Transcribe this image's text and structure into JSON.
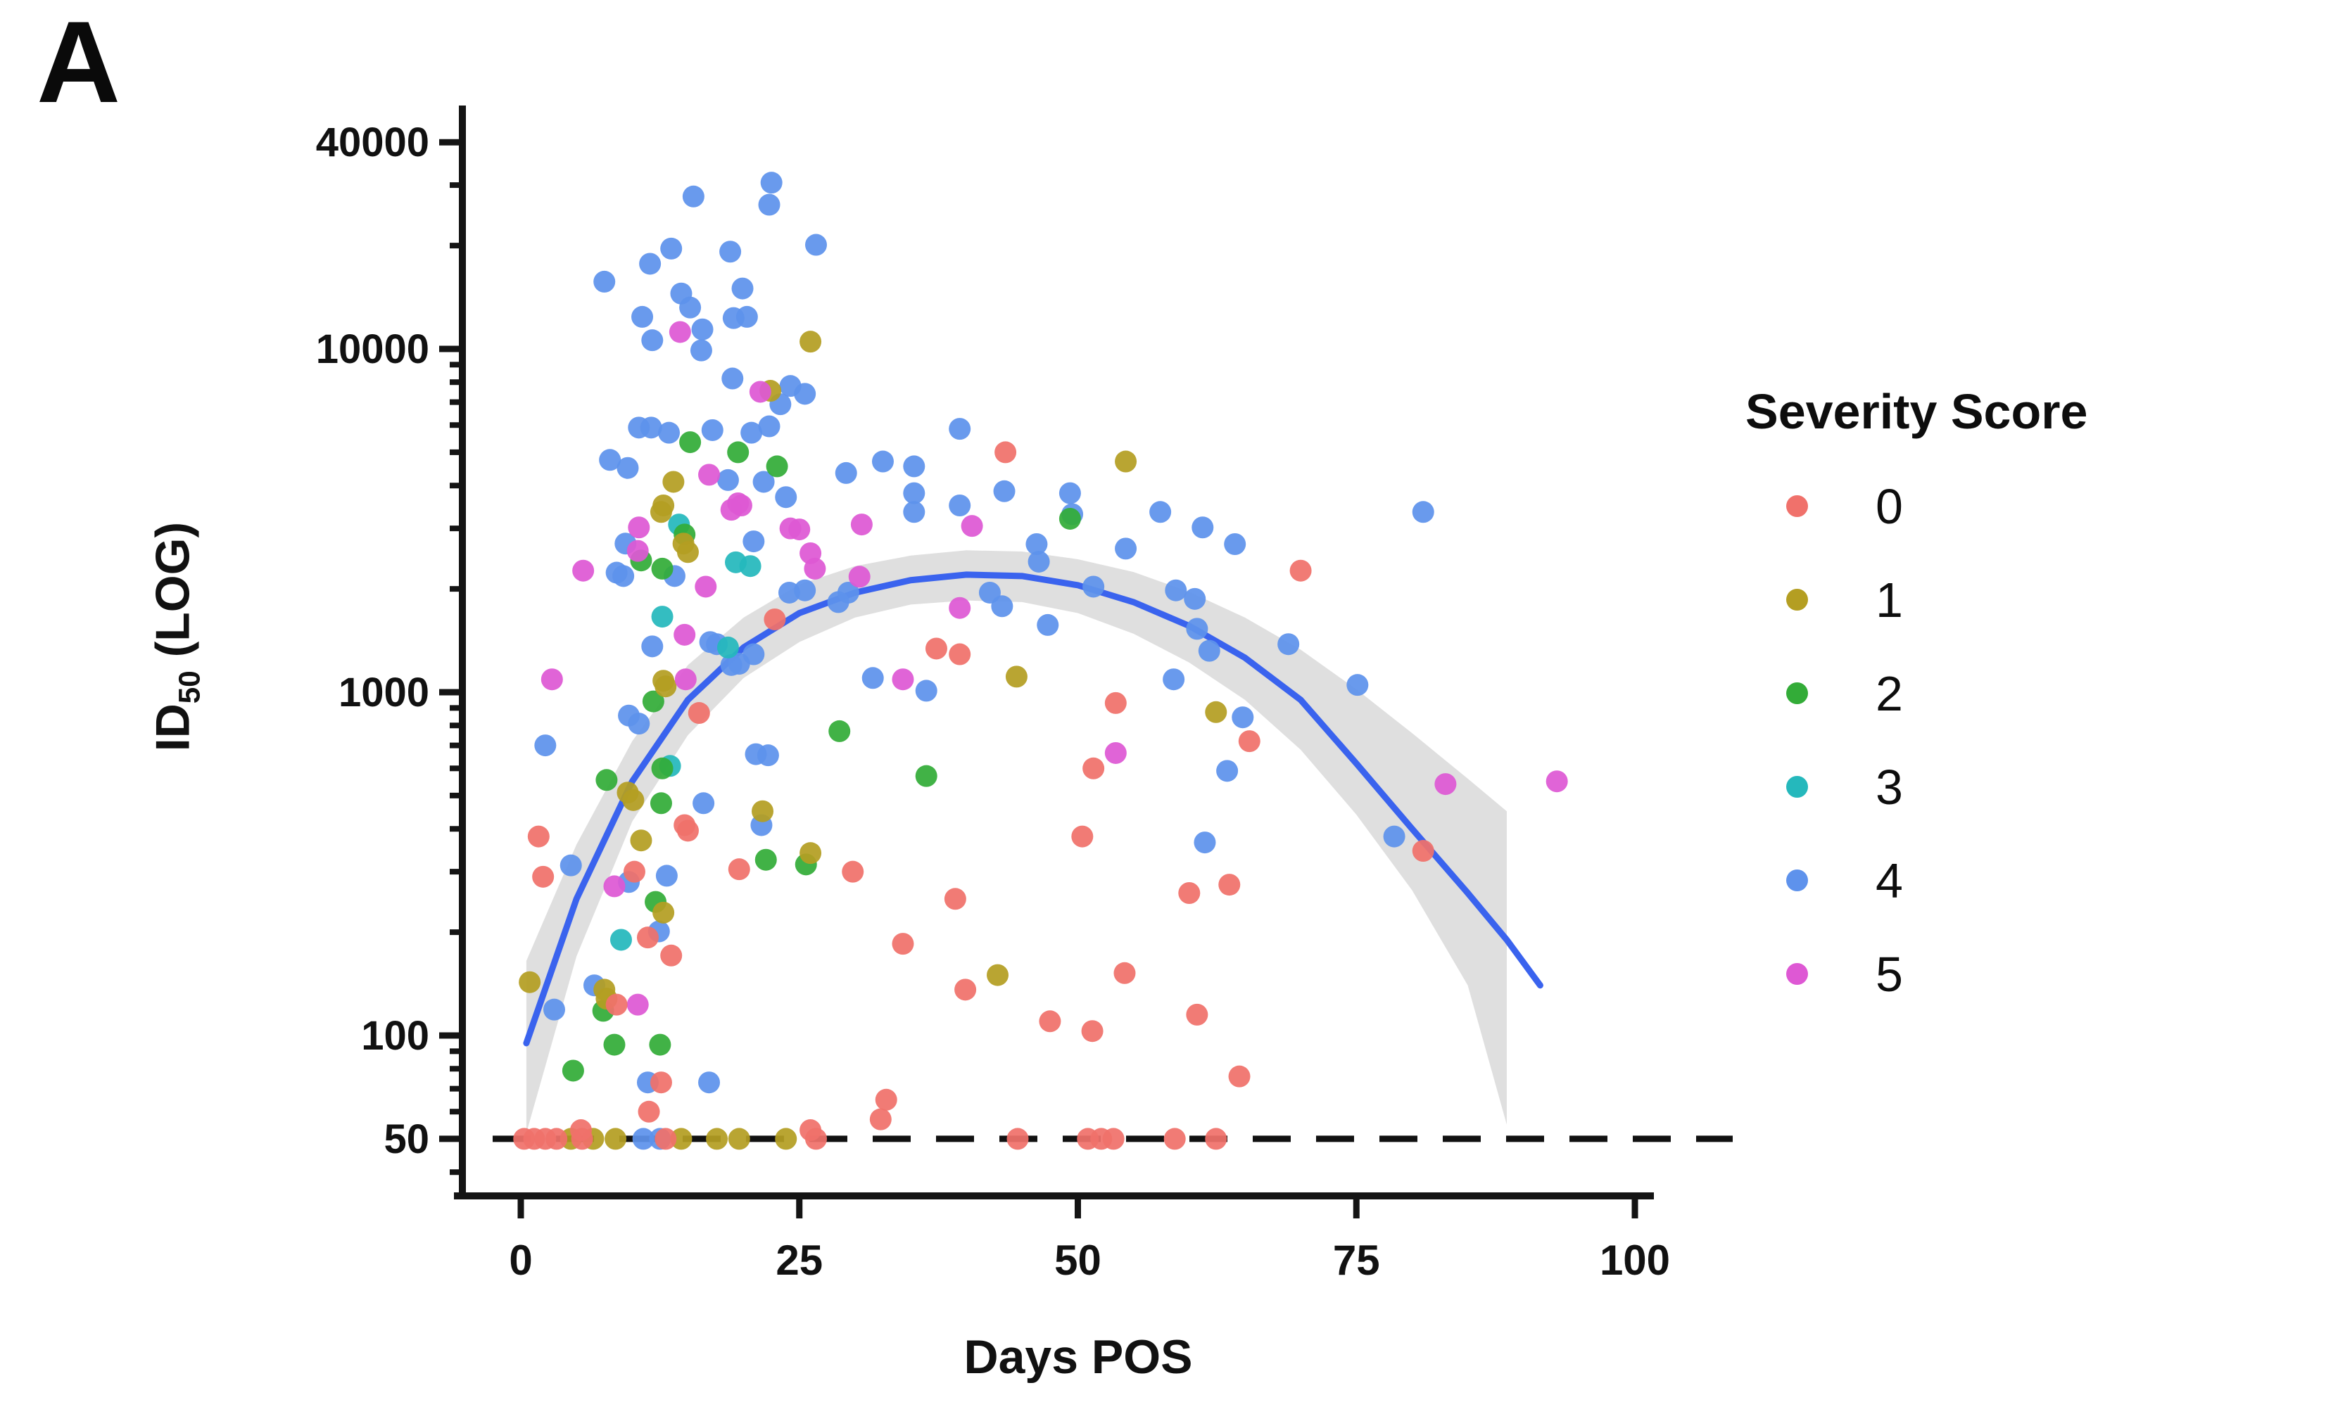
{
  "figure": {
    "panel_label": "A",
    "background": "#ffffff"
  },
  "chart_data": {
    "type": "scatter",
    "title": "",
    "xlabel": "Days POS",
    "ylabel": {
      "main": "ID",
      "sub": "50",
      "rest": " (LOG)"
    },
    "x_domain": [
      0,
      100
    ],
    "x_ticks": [
      0,
      25,
      50,
      75,
      100
    ],
    "y_scale": "log",
    "y_ticks": [
      40000,
      10000,
      1000,
      100,
      50
    ],
    "y_minor_ticks": [
      30000,
      20000,
      9000,
      8000,
      7000,
      6000,
      5000,
      4000,
      3000,
      2000,
      900,
      800,
      700,
      600,
      500,
      400,
      300,
      200,
      90,
      80,
      70,
      60,
      40
    ],
    "grid": "off",
    "legend_position": "right",
    "threshold": {
      "value": 50,
      "style": "dashed",
      "color": "#111111"
    },
    "legend": {
      "title": "Severity Score",
      "entries": [
        {
          "label": "0",
          "color": "#F0716B"
        },
        {
          "label": "1",
          "color": "#B49E22"
        },
        {
          "label": "2",
          "color": "#33AC38"
        },
        {
          "label": "3",
          "color": "#25B8BC"
        },
        {
          "label": "4",
          "color": "#5E92EC"
        },
        {
          "label": "5",
          "color": "#DE58D4"
        }
      ]
    },
    "smooth": {
      "color": "#3A63EE",
      "points": [
        [
          0.5,
          95
        ],
        [
          5,
          250
        ],
        [
          10,
          550
        ],
        [
          15,
          950
        ],
        [
          20,
          1350
        ],
        [
          25,
          1700
        ],
        [
          30,
          1950
        ],
        [
          35,
          2120
        ],
        [
          40,
          2200
        ],
        [
          45,
          2180
        ],
        [
          50,
          2050
        ],
        [
          55,
          1830
        ],
        [
          60,
          1560
        ],
        [
          65,
          1260
        ],
        [
          70,
          950
        ],
        [
          75,
          620
        ],
        [
          80,
          400
        ],
        [
          85,
          260
        ],
        [
          88.5,
          190
        ],
        [
          91.5,
          140
        ]
      ]
    },
    "band": {
      "color": "#9c9c9c",
      "opacity": 0.32,
      "days": [
        0.5,
        5,
        10,
        15,
        20,
        25,
        30,
        35,
        40,
        45,
        50,
        55,
        60,
        65,
        70,
        75,
        80,
        85,
        88.5
      ],
      "lower": [
        52,
        170,
        420,
        750,
        1100,
        1400,
        1650,
        1800,
        1850,
        1830,
        1700,
        1480,
        1220,
        950,
        680,
        440,
        265,
        140,
        55
      ],
      "upper": [
        165,
        360,
        720,
        1200,
        1650,
        2060,
        2330,
        2500,
        2590,
        2570,
        2440,
        2240,
        1960,
        1650,
        1330,
        1020,
        760,
        560,
        450
      ]
    },
    "points": [
      [
        15.5,
        27800,
        4
      ],
      [
        22.5,
        30500,
        4
      ],
      [
        22.3,
        26300,
        4
      ],
      [
        26.5,
        20100,
        4
      ],
      [
        13.5,
        19600,
        4
      ],
      [
        18.8,
        19200,
        4
      ],
      [
        11.6,
        17700,
        4
      ],
      [
        7.5,
        15700,
        4
      ],
      [
        19.9,
        15000,
        4
      ],
      [
        14.4,
        14500,
        4
      ],
      [
        15.2,
        13200,
        4
      ],
      [
        10.9,
        12400,
        4
      ],
      [
        20.3,
        12400,
        4
      ],
      [
        19.1,
        12300,
        4
      ],
      [
        16.3,
        11400,
        4
      ],
      [
        11.8,
        10600,
        4
      ],
      [
        16.2,
        9900,
        4
      ],
      [
        19,
        8200,
        4
      ],
      [
        24.2,
        7800,
        4
      ],
      [
        25.5,
        7400,
        4
      ],
      [
        23.3,
        6900,
        4
      ],
      [
        10.6,
        5900,
        4
      ],
      [
        11.7,
        5900,
        4
      ],
      [
        17.2,
        5800,
        4
      ],
      [
        13.3,
        5700,
        4
      ],
      [
        20.7,
        5700,
        4
      ],
      [
        22.3,
        5950,
        4
      ],
      [
        39.4,
        5850,
        4
      ],
      [
        8,
        4750,
        4
      ],
      [
        32.5,
        4700,
        4
      ],
      [
        9.6,
        4500,
        4
      ],
      [
        35.3,
        4550,
        4
      ],
      [
        29.2,
        4350,
        4
      ],
      [
        18.6,
        4150,
        4
      ],
      [
        21.8,
        4100,
        4
      ],
      [
        43.4,
        3850,
        4
      ],
      [
        49.3,
        3800,
        4
      ],
      [
        35.3,
        3800,
        4
      ],
      [
        23.8,
        3700,
        4
      ],
      [
        39.4,
        3500,
        4
      ],
      [
        35.3,
        3350,
        4
      ],
      [
        57.4,
        3350,
        4
      ],
      [
        81,
        3350,
        4
      ],
      [
        49.5,
        3300,
        4
      ],
      [
        61.2,
        3020,
        4
      ],
      [
        54.3,
        2620,
        4
      ],
      [
        46.3,
        2700,
        4
      ],
      [
        64.1,
        2700,
        4
      ],
      [
        20.9,
        2750,
        4
      ],
      [
        9.4,
        2710,
        4
      ],
      [
        46.5,
        2400,
        4
      ],
      [
        8.6,
        2230,
        4
      ],
      [
        9.2,
        2180,
        4
      ],
      [
        13.8,
        2180,
        4
      ],
      [
        51.4,
        2030,
        4
      ],
      [
        42.1,
        1950,
        4
      ],
      [
        24.1,
        1950,
        4
      ],
      [
        25.5,
        1980,
        4
      ],
      [
        58.8,
        1980,
        4
      ],
      [
        60.5,
        1870,
        4
      ],
      [
        28.5,
        1830,
        4
      ],
      [
        29.4,
        1950,
        4
      ],
      [
        43.2,
        1780,
        4
      ],
      [
        47.3,
        1570,
        4
      ],
      [
        60.7,
        1530,
        4
      ],
      [
        68.9,
        1380,
        4
      ],
      [
        17.6,
        1380,
        4
      ],
      [
        17,
        1400,
        4
      ],
      [
        11.8,
        1360,
        4
      ],
      [
        61.8,
        1320,
        4
      ],
      [
        20.9,
        1290,
        4
      ],
      [
        18.9,
        1200,
        4
      ],
      [
        19.6,
        1210,
        4
      ],
      [
        31.6,
        1100,
        4
      ],
      [
        58.6,
        1090,
        4
      ],
      [
        75.1,
        1050,
        4
      ],
      [
        36.4,
        1010,
        4
      ],
      [
        64.8,
        845,
        4
      ],
      [
        9.7,
        855,
        4
      ],
      [
        10.6,
        810,
        4
      ],
      [
        2.2,
        700,
        4
      ],
      [
        21.1,
        660,
        4
      ],
      [
        22.2,
        655,
        4
      ],
      [
        63.4,
        590,
        4
      ],
      [
        16.4,
        475,
        4
      ],
      [
        21.6,
        410,
        4
      ],
      [
        78.4,
        380,
        4
      ],
      [
        61.4,
        365,
        4
      ],
      [
        4.5,
        313,
        4
      ],
      [
        13.1,
        292,
        4
      ],
      [
        9.7,
        280,
        4
      ],
      [
        12.4,
        201,
        4
      ],
      [
        6.6,
        140,
        4
      ],
      [
        3,
        119,
        4
      ],
      [
        11.4,
        73,
        4
      ],
      [
        16.9,
        73,
        4
      ],
      [
        11,
        50,
        4
      ],
      [
        12.5,
        50,
        4
      ],
      [
        14.2,
        3080,
        3
      ],
      [
        19.3,
        2390,
        3
      ],
      [
        20.6,
        2330,
        3
      ],
      [
        12.7,
        1660,
        3
      ],
      [
        18.6,
        1350,
        3
      ],
      [
        13.4,
        610,
        3
      ],
      [
        9,
        190,
        3
      ],
      [
        15.2,
        5350,
        2
      ],
      [
        19.5,
        5000,
        2
      ],
      [
        23,
        4550,
        2
      ],
      [
        49.3,
        3200,
        2
      ],
      [
        14.7,
        2880,
        2
      ],
      [
        10.8,
        2420,
        2
      ],
      [
        12.7,
        2290,
        2
      ],
      [
        11.9,
        940,
        2
      ],
      [
        28.6,
        770,
        2
      ],
      [
        36.4,
        570,
        2
      ],
      [
        7.7,
        555,
        2
      ],
      [
        12.7,
        600,
        2
      ],
      [
        12.6,
        475,
        2
      ],
      [
        22,
        325,
        2
      ],
      [
        25.6,
        315,
        2
      ],
      [
        12.1,
        245,
        2
      ],
      [
        7.4,
        118,
        2
      ],
      [
        8.4,
        94,
        2
      ],
      [
        12.5,
        94,
        2
      ],
      [
        4.7,
        79,
        2
      ],
      [
        26,
        10500,
        1
      ],
      [
        22.4,
        7550,
        1
      ],
      [
        13.7,
        4100,
        1
      ],
      [
        12.8,
        3500,
        1
      ],
      [
        12.6,
        3350,
        1
      ],
      [
        14.6,
        2710,
        1
      ],
      [
        15,
        2560,
        1
      ],
      [
        54.3,
        4700,
        1
      ],
      [
        44.5,
        1110,
        1
      ],
      [
        62.4,
        875,
        1
      ],
      [
        12.8,
        1080,
        1
      ],
      [
        13,
        1040,
        1
      ],
      [
        9.6,
        510,
        1
      ],
      [
        10.1,
        485,
        1
      ],
      [
        21.7,
        450,
        1
      ],
      [
        26,
        340,
        1
      ],
      [
        10.8,
        370,
        1
      ],
      [
        42.8,
        150,
        1
      ],
      [
        0.8,
        143,
        1
      ],
      [
        7.5,
        136,
        1
      ],
      [
        7.7,
        128,
        1
      ],
      [
        12.8,
        228,
        1
      ],
      [
        4.5,
        50,
        1
      ],
      [
        6.5,
        50,
        1
      ],
      [
        8.5,
        50,
        1
      ],
      [
        14.4,
        50,
        1
      ],
      [
        17.6,
        50,
        1
      ],
      [
        19.6,
        50,
        1
      ],
      [
        23.8,
        50,
        1
      ],
      [
        14.3,
        11200,
        5
      ],
      [
        21.5,
        7500,
        5
      ],
      [
        16.9,
        4300,
        5
      ],
      [
        19.8,
        3500,
        5
      ],
      [
        19.5,
        3550,
        5
      ],
      [
        18.9,
        3400,
        5
      ],
      [
        24.2,
        3000,
        5
      ],
      [
        25,
        2980,
        5
      ],
      [
        30.6,
        3080,
        5
      ],
      [
        40.5,
        3050,
        5
      ],
      [
        10.6,
        3020,
        5
      ],
      [
        26,
        2540,
        5
      ],
      [
        10.5,
        2580,
        5
      ],
      [
        26.4,
        2290,
        5
      ],
      [
        5.6,
        2260,
        5
      ],
      [
        30.4,
        2170,
        5
      ],
      [
        16.6,
        2030,
        5
      ],
      [
        39.4,
        1760,
        5
      ],
      [
        14.7,
        1470,
        5
      ],
      [
        14.8,
        1090,
        5
      ],
      [
        2.8,
        1090,
        5
      ],
      [
        34.3,
        1090,
        5
      ],
      [
        53.4,
        665,
        5
      ],
      [
        83,
        540,
        5
      ],
      [
        93,
        550,
        5
      ],
      [
        8.4,
        272,
        5
      ],
      [
        10.5,
        123,
        5
      ],
      [
        1.6,
        380,
        0
      ],
      [
        2,
        290,
        0
      ],
      [
        10.2,
        300,
        0
      ],
      [
        16,
        870,
        0
      ],
      [
        22.8,
        1630,
        0
      ],
      [
        14.7,
        410,
        0
      ],
      [
        15,
        395,
        0
      ],
      [
        19.6,
        305,
        0
      ],
      [
        29.8,
        300,
        0
      ],
      [
        37.3,
        1340,
        0
      ],
      [
        39.4,
        1290,
        0
      ],
      [
        43.5,
        5000,
        0
      ],
      [
        53.4,
        930,
        0
      ],
      [
        51.4,
        600,
        0
      ],
      [
        65.4,
        720,
        0
      ],
      [
        70,
        2260,
        0
      ],
      [
        81,
        345,
        0
      ],
      [
        50.4,
        380,
        0
      ],
      [
        39,
        250,
        0
      ],
      [
        34.3,
        185,
        0
      ],
      [
        60,
        260,
        0
      ],
      [
        63.6,
        275,
        0
      ],
      [
        39.9,
        136,
        0
      ],
      [
        54.2,
        152,
        0
      ],
      [
        47.5,
        110,
        0
      ],
      [
        51.3,
        103,
        0
      ],
      [
        60.7,
        115,
        0
      ],
      [
        64.5,
        76,
        0
      ],
      [
        32.3,
        57,
        0
      ],
      [
        12.6,
        73,
        0
      ],
      [
        32.8,
        65,
        0
      ],
      [
        5.4,
        53,
        0
      ],
      [
        26,
        53,
        0
      ],
      [
        11.4,
        193,
        0
      ],
      [
        13.5,
        171,
        0
      ],
      [
        8.6,
        123,
        0
      ],
      [
        11.5,
        60,
        0
      ],
      [
        0.3,
        50,
        0
      ],
      [
        1.2,
        50,
        0
      ],
      [
        2.2,
        50,
        0
      ],
      [
        3.2,
        50,
        0
      ],
      [
        5.5,
        50,
        0
      ],
      [
        13,
        50,
        0
      ],
      [
        26.5,
        50,
        0
      ],
      [
        44.6,
        50,
        0
      ],
      [
        50.9,
        50,
        0
      ],
      [
        52.1,
        50,
        0
      ],
      [
        53.2,
        50,
        0
      ],
      [
        58.7,
        50,
        0
      ],
      [
        62.4,
        50,
        0
      ]
    ]
  }
}
